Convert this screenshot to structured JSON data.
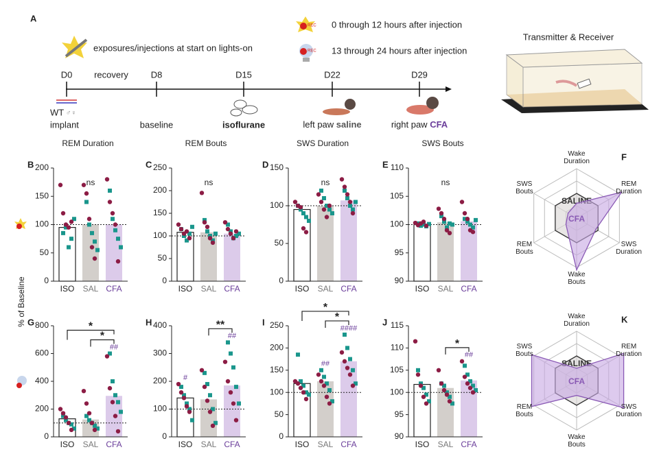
{
  "timeline": {
    "letter": "A",
    "legend": "exposures/injections at start on lights-on",
    "rec": "REC",
    "rec_early": "0 through 12 hours after injection",
    "rec_late": "13 through 24 hours after injection",
    "device": "Transmitter & Receiver",
    "days": [
      "D0",
      "D8",
      "D15",
      "D22",
      "D29"
    ],
    "phase": "recovery",
    "strain": "WT",
    "sexes": "♂♀",
    "steps": [
      "implant",
      "baseline",
      "isoflurane"
    ],
    "left": [
      "left paw ",
      "saline"
    ],
    "right": [
      "right paw ",
      "CFA"
    ]
  },
  "y_label": "% of Baseline",
  "chart_data": [
    {
      "type": "bar",
      "panel": "B",
      "title": "REM Duration",
      "note": "ns",
      "categories": [
        "ISO",
        "SAL",
        "CFA"
      ],
      "category_colors": [
        "#222222",
        "#777777",
        "#6a3d9a"
      ],
      "bar_colors": [
        "#ffffff",
        "#d3cfcb",
        "#dccbea"
      ],
      "values": [
        95,
        100,
        100
      ],
      "baseline": 100,
      "ylim": [
        0,
        200
      ],
      "yticks": [
        0,
        50,
        100,
        150,
        200
      ],
      "dots": [
        {
          "shape": "square",
          "color": "#1a968c",
          "values": [
            [
              85,
              95,
              60,
              75,
              110
            ],
            [
              140,
              100,
              85,
              70,
              55
            ],
            [
              160,
              110,
              90,
              75,
              60
            ]
          ]
        },
        {
          "shape": "circle",
          "color": "#8c1d45",
          "values": [
            [
              170,
              120,
              100,
              95,
              105
            ],
            [
              170,
              155,
              110,
              60,
              40
            ],
            [
              180,
              140,
              120,
              100,
              35
            ]
          ]
        }
      ]
    },
    {
      "type": "bar",
      "panel": "C",
      "title": "REM Bouts",
      "note": "ns",
      "categories": [
        "ISO",
        "SAL",
        "CFA"
      ],
      "category_colors": [
        "#222222",
        "#777777",
        "#6a3d9a"
      ],
      "bar_colors": [
        "#ffffff",
        "#d3cfcb",
        "#dccbea"
      ],
      "values": [
        108,
        108,
        105
      ],
      "baseline": 100,
      "ylim": [
        0,
        250
      ],
      "yticks": [
        0,
        50,
        100,
        150,
        200,
        250
      ],
      "dots": [
        {
          "shape": "square",
          "color": "#1a968c",
          "values": [
            [
              115,
              100,
              90,
              105,
              120
            ],
            [
              135,
              110,
              100,
              90,
              105
            ],
            [
              125,
              110,
              95,
              100,
              105
            ]
          ]
        },
        {
          "shape": "circle",
          "color": "#8c1d45",
          "values": [
            [
              125,
              115,
              105,
              110,
              95
            ],
            [
              195,
              130,
              120,
              95,
              85
            ],
            [
              130,
              115,
              105,
              95,
              110
            ]
          ]
        }
      ]
    },
    {
      "type": "bar",
      "panel": "D",
      "title": "SWS Duration",
      "note": "ns",
      "categories": [
        "ISO",
        "SAL",
        "CFA"
      ],
      "category_colors": [
        "#222222",
        "#777777",
        "#6a3d9a"
      ],
      "bar_colors": [
        "#ffffff",
        "#d3cfcb",
        "#dccbea"
      ],
      "values": [
        95,
        100,
        107
      ],
      "baseline": 100,
      "ylim": [
        0,
        150
      ],
      "yticks": [
        0,
        50,
        100,
        150
      ],
      "dots": [
        {
          "shape": "square",
          "color": "#1a968c",
          "values": [
            [
              100,
              95,
              90,
              85,
              80
            ],
            [
              120,
              110,
              100,
              95,
              90
            ],
            [
              120,
              110,
              100,
              95,
              105
            ]
          ]
        },
        {
          "shape": "circle",
          "color": "#8c1d45",
          "values": [
            [
              105,
              100,
              98,
              70,
              65
            ],
            [
              115,
              105,
              95,
              85,
              100
            ],
            [
              135,
              125,
              115,
              105,
              90
            ]
          ]
        }
      ]
    },
    {
      "type": "bar",
      "panel": "E",
      "title": "SWS Bouts",
      "note": "ns",
      "categories": [
        "ISO",
        "SAL",
        "CFA"
      ],
      "category_colors": [
        "#222222",
        "#777777",
        "#6a3d9a"
      ],
      "bar_colors": [
        "#ffffff",
        "#d3cfcb",
        "#dccbea"
      ],
      "values": [
        100,
        100.4,
        100.6
      ],
      "baseline": 100,
      "ylim": [
        90,
        110
      ],
      "yticks": [
        90,
        95,
        100,
        105,
        110
      ],
      "dots": [
        {
          "shape": "square",
          "color": "#1a968c",
          "values": [
            [
              100.2,
              99.8,
              100,
              99.7,
              100.1
            ],
            [
              101.5,
              100.5,
              99.5,
              100.2,
              100
            ],
            [
              101,
              100.5,
              100,
              99.5,
              100.8
            ]
          ]
        },
        {
          "shape": "circle",
          "color": "#8c1d45",
          "values": [
            [
              100.3,
              99.9,
              100.2,
              100.5,
              99.8
            ],
            [
              102.8,
              102,
              101,
              99,
              98.5
            ],
            [
              104,
              102,
              101,
              99,
              98.7
            ]
          ]
        }
      ]
    },
    {
      "type": "bar",
      "panel": "G",
      "categories": [
        "ISO",
        "SAL",
        "CFA"
      ],
      "category_colors": [
        "#222222",
        "#777777",
        "#6a3d9a"
      ],
      "bar_colors": [
        "#ffffff",
        "#d3cfcb",
        "#dccbea"
      ],
      "values": [
        130,
        125,
        295
      ],
      "baseline": 100,
      "ylim": [
        0,
        800
      ],
      "yticks": [
        0,
        200,
        400,
        600,
        800
      ],
      "hash_labels": [
        null,
        null,
        "##"
      ],
      "brackets": [
        {
          "label": "*",
          "between": [
            "SAL",
            "CFA"
          ]
        },
        {
          "label": "*",
          "between": [
            "ISO",
            "CFA"
          ]
        }
      ],
      "dots": [
        {
          "shape": "square",
          "color": "#1a968c",
          "values": [
            [
              150,
              120,
              100,
              90,
              60
            ],
            [
              150,
              120,
              100,
              80,
              60
            ],
            [
              600,
              400,
              300,
              250,
              180
            ]
          ]
        },
        {
          "shape": "circle",
          "color": "#8c1d45",
          "values": [
            [
              200,
              170,
              140,
              100,
              50
            ],
            [
              330,
              240,
              170,
              100,
              50
            ],
            [
              580,
              350,
              250,
              150,
              40
            ]
          ]
        }
      ]
    },
    {
      "type": "bar",
      "panel": "H",
      "categories": [
        "ISO",
        "SAL",
        "CFA"
      ],
      "category_colors": [
        "#222222",
        "#777777",
        "#6a3d9a"
      ],
      "bar_colors": [
        "#ffffff",
        "#d3cfcb",
        "#dccbea"
      ],
      "values": [
        140,
        135,
        185
      ],
      "baseline": 100,
      "ylim": [
        0,
        400
      ],
      "yticks": [
        0,
        100,
        200,
        300,
        400
      ],
      "hash_labels": [
        "#",
        null,
        "##"
      ],
      "brackets": [
        {
          "label": "**",
          "between": [
            "SAL",
            "CFA"
          ]
        }
      ],
      "dots": [
        {
          "shape": "square",
          "color": "#1a968c",
          "values": [
            [
              180,
              150,
              120,
              100,
              60
            ],
            [
              230,
              190,
              150,
              100,
              50
            ],
            [
              340,
              300,
              250,
              180,
              120
            ]
          ]
        },
        {
          "shape": "circle",
          "color": "#8c1d45",
          "values": [
            [
              190,
              160,
              140,
              110,
              90
            ],
            [
              240,
              180,
              130,
              90,
              40
            ],
            [
              270,
              200,
              160,
              120,
              60
            ]
          ]
        }
      ]
    },
    {
      "type": "bar",
      "panel": "I",
      "categories": [
        "ISO",
        "SAL",
        "CFA"
      ],
      "category_colors": [
        "#222222",
        "#777777",
        "#6a3d9a"
      ],
      "bar_colors": [
        "#ffffff",
        "#d3cfcb",
        "#dccbea"
      ],
      "values": [
        120,
        125,
        170
      ],
      "baseline": 100,
      "ylim": [
        0,
        250
      ],
      "yticks": [
        0,
        50,
        100,
        150,
        200,
        250
      ],
      "hash_labels": [
        null,
        "##",
        "####"
      ],
      "brackets": [
        {
          "label": "*",
          "between": [
            "SAL",
            "CFA"
          ]
        },
        {
          "label": "*",
          "between": [
            "ISO",
            "CFA"
          ]
        }
      ],
      "dots": [
        {
          "shape": "square",
          "color": "#1a968c",
          "values": [
            [
              185,
              125,
              115,
              100,
              95
            ],
            [
              150,
              135,
              120,
              105,
              80
            ],
            [
              230,
              200,
              175,
              150,
              120
            ]
          ]
        },
        {
          "shape": "circle",
          "color": "#8c1d45",
          "values": [
            [
              125,
              120,
              110,
              100,
              85
            ],
            [
              140,
              125,
              115,
              90,
              75
            ],
            [
              190,
              170,
              155,
              140,
              115
            ]
          ]
        }
      ]
    },
    {
      "type": "bar",
      "panel": "J",
      "categories": [
        "ISO",
        "SAL",
        "CFA"
      ],
      "category_colors": [
        "#222222",
        "#777777",
        "#6a3d9a"
      ],
      "bar_colors": [
        "#ffffff",
        "#d3cfcb",
        "#dccbea"
      ],
      "values": [
        101.8,
        101,
        102.7
      ],
      "baseline": 100,
      "ylim": [
        90,
        115
      ],
      "yticks": [
        90,
        95,
        100,
        105,
        110,
        115
      ],
      "hash_labels": [
        null,
        null,
        "##"
      ],
      "brackets": [
        {
          "label": "*",
          "between": [
            "SAL",
            "CFA"
          ]
        }
      ],
      "dots": [
        {
          "shape": "square",
          "color": "#1a968c",
          "values": [
            [
              105,
              102,
              101,
              99.5,
              98
            ],
            [
              102,
              101.5,
              100,
              99,
              97.5
            ],
            [
              106,
              104,
              102.5,
              101.5,
              100.5
            ]
          ]
        },
        {
          "shape": "circle",
          "color": "#8c1d45",
          "values": [
            [
              111.5,
              104,
              101.5,
              99,
              97.5
            ],
            [
              105,
              102,
              100.5,
              99.5,
              98
            ],
            [
              107,
              103.5,
              102,
              101,
              100
            ]
          ]
        }
      ]
    },
    {
      "type": "radar",
      "panel": "F",
      "axes": [
        [
          "Wake",
          "Duration"
        ],
        [
          "REM",
          "Duration"
        ],
        [
          "SWS",
          "Duration"
        ],
        [
          "Wake",
          "Bouts"
        ],
        [
          "REM",
          "Bouts"
        ],
        [
          "SWS",
          "Bouts"
        ]
      ],
      "rlim": [
        0,
        2
      ],
      "rings": [
        0.5,
        1,
        1.5,
        2
      ],
      "series": [
        {
          "name": "SALINE",
          "color": "#333333",
          "fill": "#d8d6d4",
          "values": [
            1,
            1,
            1,
            1,
            1,
            1
          ]
        },
        {
          "name": "CFA",
          "color": "#8a5ab5",
          "fill": "#c7a6e2",
          "values": [
            0.6,
            2.1,
            0.9,
            2.1,
            0.5,
            0.4
          ]
        }
      ]
    },
    {
      "type": "radar",
      "panel": "K",
      "axes": [
        [
          "Wake",
          "Duration"
        ],
        [
          "REM",
          "Duration"
        ],
        [
          "SWS",
          "Duration"
        ],
        [
          "Wake",
          "Bouts"
        ],
        [
          "REM",
          "Bouts"
        ],
        [
          "SWS",
          "Bouts"
        ]
      ],
      "rlim": [
        0,
        2
      ],
      "rings": [
        0.5,
        1,
        1.5,
        2
      ],
      "series": [
        {
          "name": "SALINE",
          "color": "#333333",
          "fill": "#d8d6d4",
          "values": [
            1,
            1,
            1,
            1,
            1,
            1
          ]
        },
        {
          "name": "CFA",
          "color": "#8a5ab5",
          "fill": "#c7a6e2",
          "values": [
            0.5,
            2.2,
            2.2,
            0.6,
            2.1,
            2.1
          ]
        }
      ]
    }
  ]
}
